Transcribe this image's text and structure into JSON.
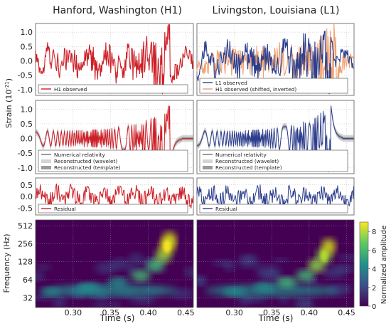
{
  "titles": {
    "left": "Hanford, Washington (H1)",
    "right": "Livingston, Louisiana (L1)"
  },
  "axis_labels": {
    "strain": "Strain (10",
    "strain_exp": "-21",
    "strain_close": ")",
    "frequency": "Frequency (Hz)",
    "time": "Time (s)",
    "colorbar": "Normalized amplitude"
  },
  "colors": {
    "h1": "#cc1f27",
    "l1": "#2c3e8c",
    "h1_shifted": "#f0a070",
    "nr": "#6e6e6e",
    "wavelet_band": "#d4d4d4",
    "template_band": "#9a9a9a",
    "frame": "#555555",
    "grid": "#bbbbbb"
  },
  "chart_data": [
    {
      "type": "line",
      "panel": "H1 observed",
      "ylim": [
        -1.2,
        1.3
      ],
      "yticks": [
        "1.0",
        "0.5",
        "0.0",
        "-0.5",
        "-1.0"
      ],
      "yticks_values": [
        1.0,
        0.5,
        0.0,
        -0.5,
        -1.0
      ],
      "xlim": [
        0.25,
        0.46
      ],
      "grid": true,
      "legend_position": "bottom-left",
      "series": [
        {
          "name": "H1 observed",
          "color": "#cc1f27",
          "style": "line"
        }
      ]
    },
    {
      "type": "line",
      "panel": "L1 observed",
      "ylim": [
        -1.2,
        1.3
      ],
      "yticks_values": [
        1.0,
        0.5,
        0.0,
        -0.5,
        -1.0
      ],
      "xlim": [
        0.25,
        0.46
      ],
      "grid": true,
      "legend_position": "bottom-left",
      "series": [
        {
          "name": "L1 observed",
          "color": "#2c3e8c",
          "style": "line"
        },
        {
          "name": "H1 observed (shifted, inverted)",
          "color": "#f0a070",
          "style": "line"
        }
      ]
    },
    {
      "type": "line",
      "panel": "H1 reconstructed",
      "ylim": [
        -1.2,
        1.3
      ],
      "yticks": [
        "1.0",
        "0.5",
        "0.0",
        "-0.5",
        "-1.0"
      ],
      "yticks_values": [
        1.0,
        0.5,
        0.0,
        -0.5,
        -1.0
      ],
      "xlim": [
        0.25,
        0.46
      ],
      "grid": true,
      "legend_position": "bottom-left",
      "series": [
        {
          "name": "Numerical relativity",
          "color": "#cc1f27",
          "style": "line"
        },
        {
          "name": "Reconstructed (wavelet)",
          "color": "#d4d4d4",
          "style": "band"
        },
        {
          "name": "Reconstructed (template)",
          "color": "#9a9a9a",
          "style": "band"
        }
      ]
    },
    {
      "type": "line",
      "panel": "L1 reconstructed",
      "ylim": [
        -1.2,
        1.3
      ],
      "yticks_values": [
        1.0,
        0.5,
        0.0,
        -0.5,
        -1.0
      ],
      "xlim": [
        0.25,
        0.46
      ],
      "grid": true,
      "legend_position": "bottom-left",
      "series": [
        {
          "name": "Numerical relativity",
          "color": "#2c3e8c",
          "style": "line"
        },
        {
          "name": "Reconstructed (wavelet)",
          "color": "#d4d4d4",
          "style": "band"
        },
        {
          "name": "Reconstructed (template)",
          "color": "#9a9a9a",
          "style": "band"
        }
      ]
    },
    {
      "type": "line",
      "panel": "H1 residual",
      "ylim": [
        -0.8,
        0.8
      ],
      "yticks": [
        "0.5",
        "0.0",
        "-0.5"
      ],
      "yticks_values": [
        0.5,
        0.0,
        -0.5
      ],
      "xlim": [
        0.25,
        0.46
      ],
      "grid": true,
      "legend_position": "bottom-left",
      "series": [
        {
          "name": "Residual",
          "color": "#cc1f27",
          "style": "line"
        }
      ]
    },
    {
      "type": "line",
      "panel": "L1 residual",
      "ylim": [
        -0.8,
        0.8
      ],
      "yticks_values": [
        0.5,
        0.0,
        -0.5
      ],
      "xlim": [
        0.25,
        0.46
      ],
      "grid": true,
      "legend_position": "bottom-left",
      "series": [
        {
          "name": "Residual",
          "color": "#2c3e8c",
          "style": "line"
        }
      ]
    },
    {
      "type": "heatmap",
      "panel": "H1 time-frequency",
      "xlim": [
        0.25,
        0.46
      ],
      "xticks": [
        "0.30",
        "0.35",
        "0.40",
        "0.45"
      ],
      "xticks_values": [
        0.3,
        0.35,
        0.4,
        0.45
      ],
      "yscale": "log2",
      "ylim": [
        22,
        640
      ],
      "yticks": [
        "512",
        "256",
        "128",
        "64",
        "32"
      ],
      "yticks_values": [
        512,
        256,
        128,
        64,
        32
      ],
      "chirp_track": [
        {
          "t": 0.27,
          "f": 40
        },
        {
          "t": 0.32,
          "f": 48
        },
        {
          "t": 0.36,
          "f": 58
        },
        {
          "t": 0.39,
          "f": 75
        },
        {
          "t": 0.41,
          "f": 110
        },
        {
          "t": 0.42,
          "f": 160
        },
        {
          "t": 0.425,
          "f": 230
        },
        {
          "t": 0.428,
          "f": 300
        }
      ],
      "peak_amplitude": 8
    },
    {
      "type": "heatmap",
      "panel": "L1 time-frequency",
      "xlim": [
        0.25,
        0.46
      ],
      "xticks": [
        "0.30",
        "0.35",
        "0.40",
        "0.45"
      ],
      "xticks_values": [
        0.3,
        0.35,
        0.4,
        0.45
      ],
      "yscale": "log2",
      "ylim": [
        22,
        640
      ],
      "yticks_values": [
        512,
        256,
        128,
        64,
        32
      ],
      "chirp_track": [
        {
          "t": 0.3,
          "f": 40
        },
        {
          "t": 0.34,
          "f": 48
        },
        {
          "t": 0.37,
          "f": 58
        },
        {
          "t": 0.395,
          "f": 75
        },
        {
          "t": 0.41,
          "f": 110
        },
        {
          "t": 0.42,
          "f": 160
        },
        {
          "t": 0.426,
          "f": 230
        }
      ],
      "peak_amplitude": 6
    },
    {
      "type": "colorbar",
      "label": "Normalized amplitude",
      "range": [
        0,
        9
      ],
      "ticks": [
        "8",
        "6",
        "4",
        "2",
        "0"
      ],
      "ticks_values": [
        8,
        6,
        4,
        2,
        0
      ],
      "colormap": [
        "#440154",
        "#3b528b",
        "#21918c",
        "#5ec962",
        "#fde725"
      ]
    }
  ]
}
